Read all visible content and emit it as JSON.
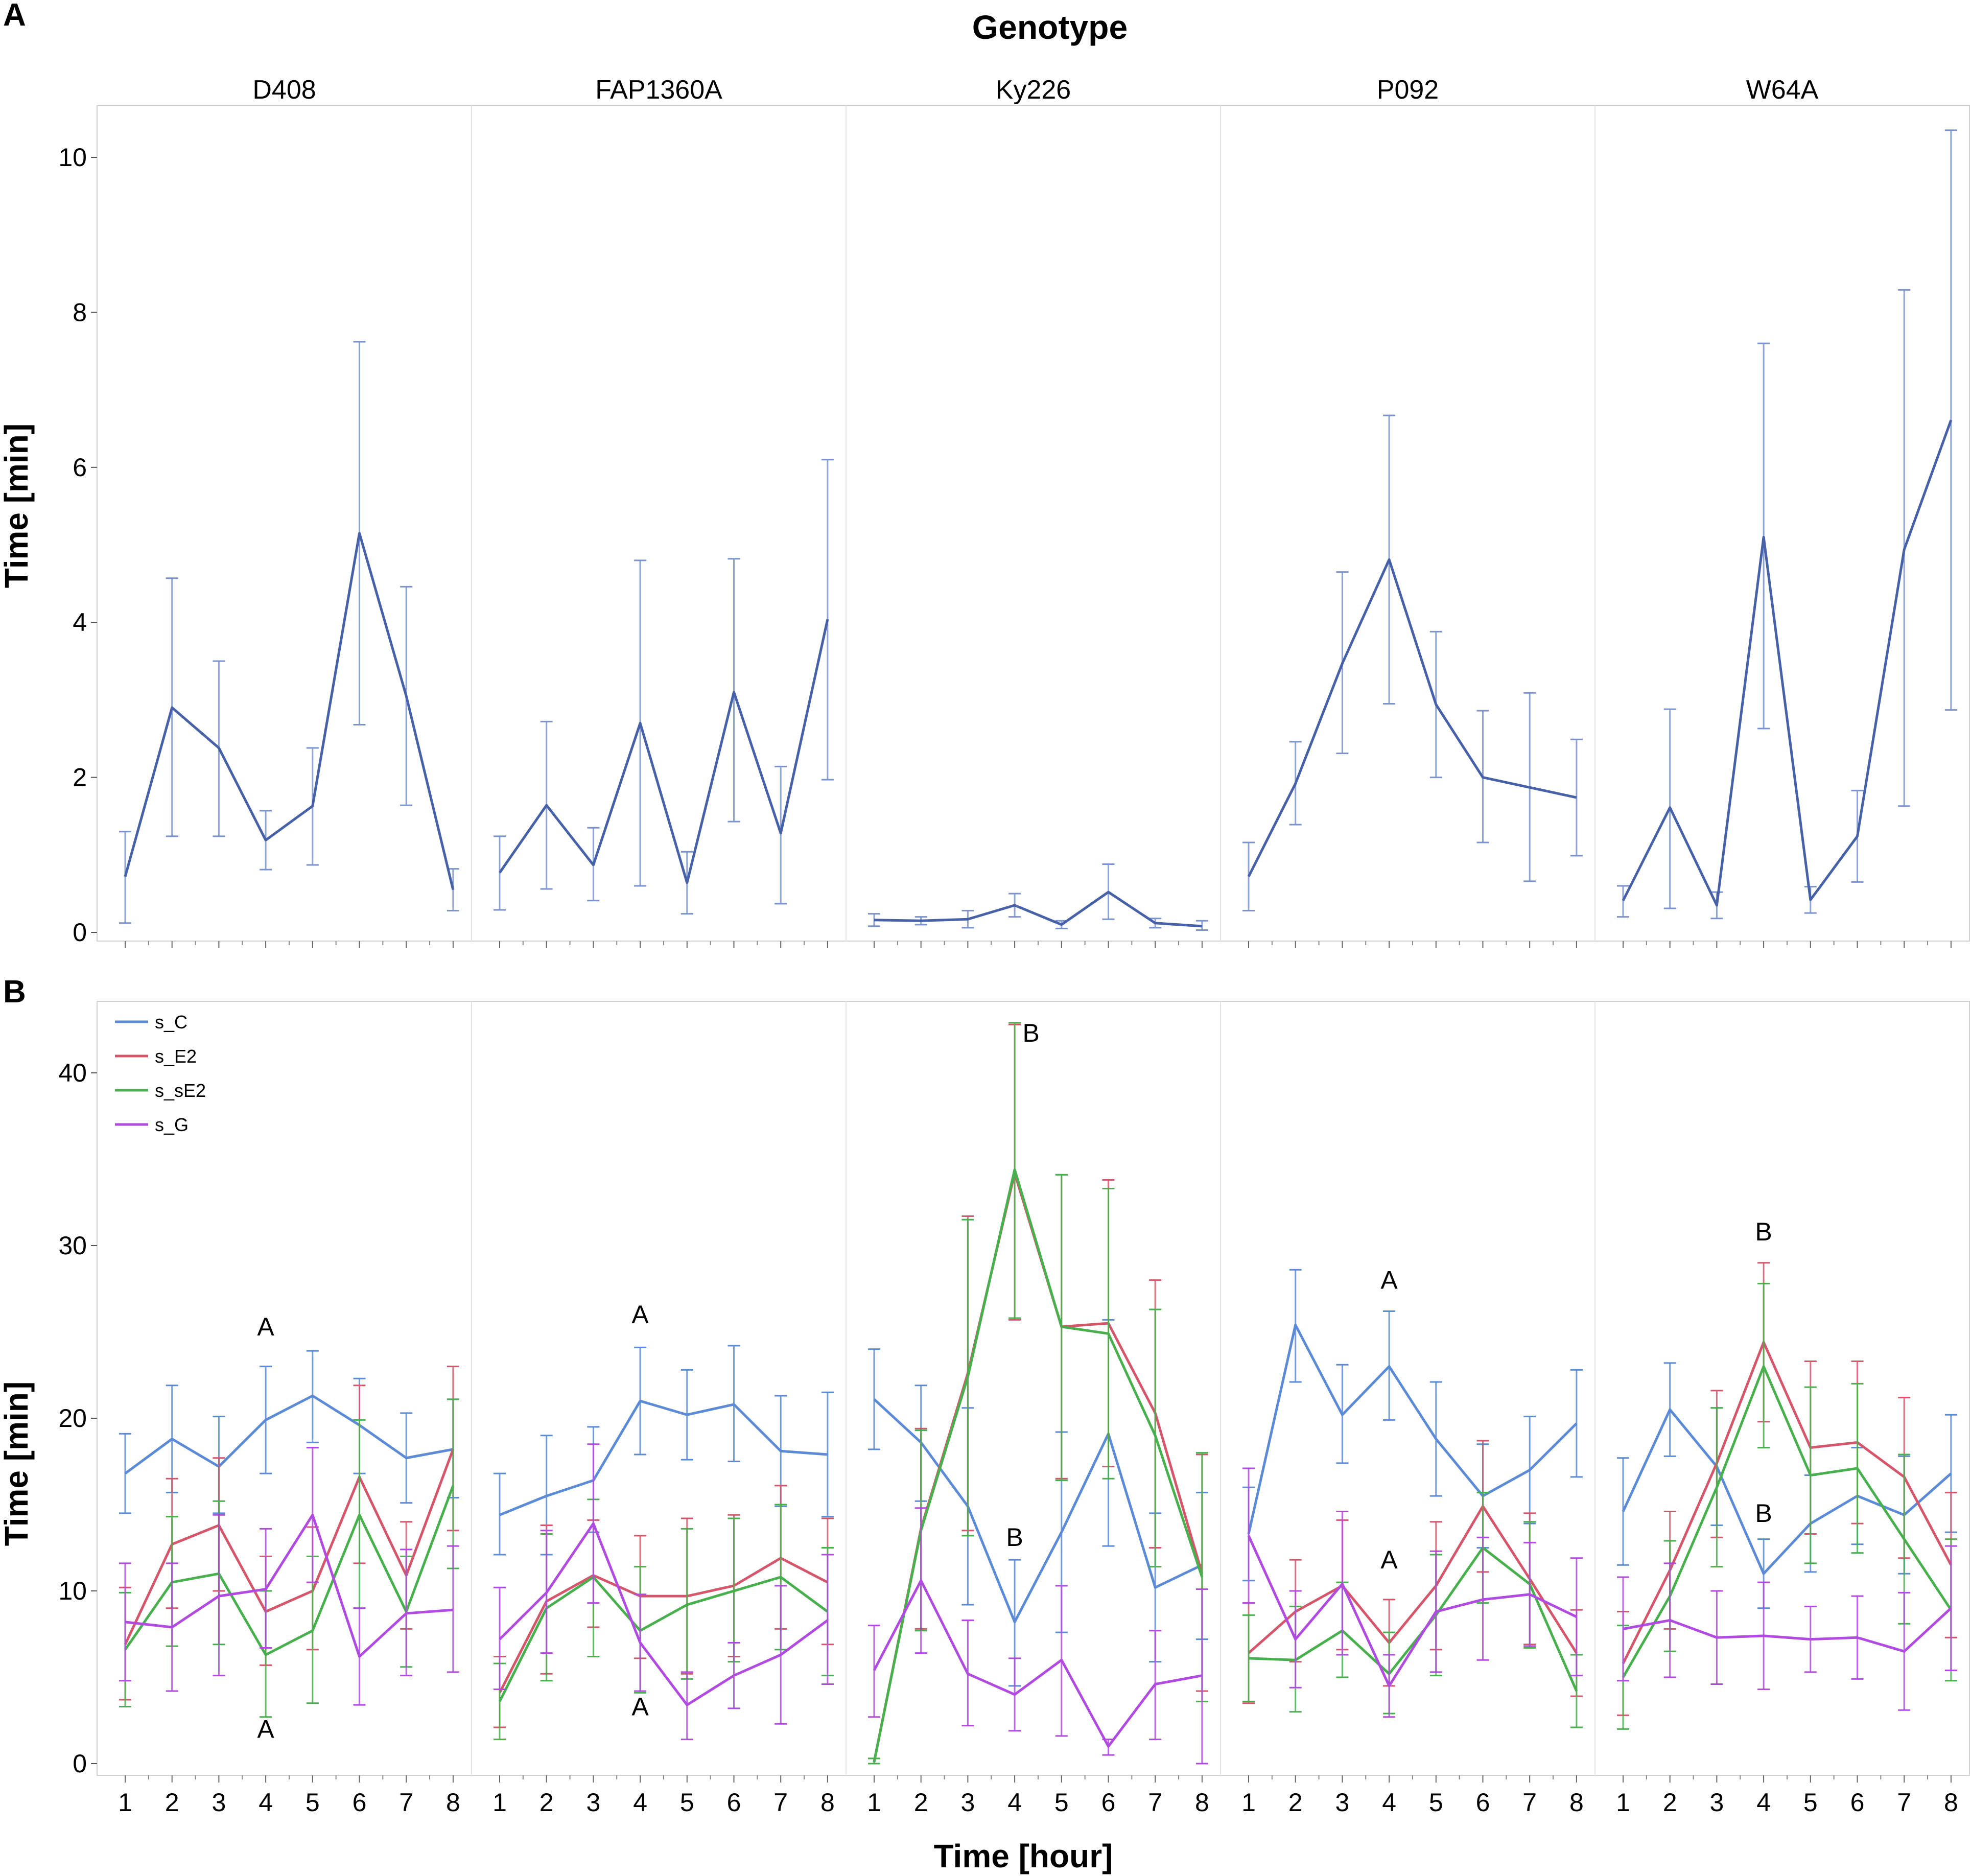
{
  "figure": {
    "panel_a_label": "A",
    "panel_b_label": "B",
    "title": "Genotype",
    "xlabel": "Time [hour]"
  },
  "colors": {
    "panel_a_line": "#4661a8",
    "panel_a_error": "#7a93cf",
    "s_C": "#5b8ad6",
    "s_E2": "#d5566a",
    "s_sE2": "#47b04d",
    "s_G": "#b04ae0",
    "frame": "#d0d0d0",
    "divider": "#e4e4e4"
  },
  "chart_data": [
    {
      "type": "line",
      "panel": "A",
      "title": "Genotype",
      "xlabel": "",
      "ylabel": "Time [min]",
      "ylim": [
        0,
        10.6
      ],
      "yticks": [
        0,
        2,
        4,
        6,
        8,
        10
      ],
      "categories": [
        "1",
        "2",
        "3",
        "4",
        "5",
        "6",
        "7",
        "8"
      ],
      "facets": [
        {
          "name": "D408",
          "values": [
            0.72,
            2.9,
            2.38,
            1.19,
            1.63,
            5.15,
            3.05,
            0.55
          ],
          "lower": [
            0.12,
            1.24,
            1.24,
            0.81,
            0.87,
            2.68,
            1.64,
            0.28
          ],
          "upper": [
            1.3,
            4.57,
            3.5,
            1.57,
            2.38,
            7.62,
            4.46,
            0.82
          ]
        },
        {
          "name": "FAP1360A",
          "values": [
            0.77,
            1.64,
            0.87,
            2.7,
            0.64,
            3.1,
            1.28,
            4.04
          ],
          "lower": [
            0.29,
            0.56,
            0.41,
            0.6,
            0.24,
            1.43,
            0.37,
            1.97
          ],
          "upper": [
            1.24,
            2.72,
            1.35,
            4.8,
            1.04,
            4.82,
            2.14,
            6.1
          ]
        },
        {
          "name": "Ky226",
          "values": [
            0.16,
            0.15,
            0.17,
            0.35,
            0.1,
            0.52,
            0.12,
            0.08
          ],
          "lower": [
            0.08,
            0.1,
            0.06,
            0.2,
            0.05,
            0.17,
            0.06,
            0.03
          ],
          "upper": [
            0.24,
            0.2,
            0.28,
            0.5,
            0.15,
            0.88,
            0.18,
            0.15
          ]
        },
        {
          "name": "P092",
          "values": [
            0.72,
            1.92,
            3.47,
            4.81,
            2.94,
            2.0,
            1.87,
            1.74
          ],
          "lower": [
            0.28,
            1.39,
            2.31,
            2.95,
            2.0,
            1.16,
            0.66,
            0.99
          ],
          "upper": [
            1.16,
            2.46,
            4.65,
            6.67,
            3.88,
            2.86,
            3.09,
            2.49
          ]
        },
        {
          "name": "W64A",
          "values": [
            0.41,
            1.61,
            0.35,
            5.1,
            0.42,
            1.24,
            4.94,
            6.61
          ],
          "lower": [
            0.2,
            0.31,
            0.18,
            2.63,
            0.25,
            0.65,
            1.63,
            2.87
          ],
          "upper": [
            0.6,
            2.88,
            0.52,
            7.6,
            0.59,
            1.83,
            8.29,
            10.35
          ]
        }
      ]
    },
    {
      "type": "line",
      "panel": "B",
      "xlabel": "Time [hour]",
      "ylabel": "Time [min]",
      "ylim": [
        0,
        43.5
      ],
      "yticks": [
        0,
        10,
        20,
        30,
        40
      ],
      "categories": [
        "1",
        "2",
        "3",
        "4",
        "5",
        "6",
        "7",
        "8"
      ],
      "legend": [
        "s_C",
        "s_E2",
        "s_sE2",
        "s_G"
      ],
      "legend_position": "top-left",
      "facets": [
        {
          "name": "D408",
          "series": [
            {
              "name": "s_C",
              "values": [
                16.8,
                18.8,
                17.2,
                19.9,
                21.3,
                19.6,
                17.7,
                18.2
              ],
              "lower": [
                14.5,
                15.7,
                14.5,
                16.8,
                18.6,
                16.8,
                15.1,
                15.4
              ],
              "upper": [
                19.1,
                21.9,
                20.1,
                23.0,
                23.9,
                22.3,
                20.3,
                21.1
              ]
            },
            {
              "name": "s_E2",
              "values": [
                6.9,
                12.7,
                13.8,
                8.8,
                10.0,
                16.6,
                10.9,
                18.2
              ],
              "lower": [
                3.7,
                9.0,
                10.0,
                5.7,
                6.6,
                11.6,
                7.8,
                13.5
              ],
              "upper": [
                10.2,
                16.5,
                17.7,
                12.0,
                13.7,
                21.9,
                14.0,
                23.0
              ]
            },
            {
              "name": "s_sE2",
              "values": [
                6.6,
                10.5,
                11.0,
                6.3,
                7.7,
                14.4,
                8.8,
                16.1
              ],
              "lower": [
                3.3,
                6.8,
                6.9,
                2.7,
                3.5,
                9.0,
                5.6,
                11.3
              ],
              "upper": [
                9.9,
                14.3,
                15.2,
                10.0,
                12.0,
                19.9,
                12.0,
                21.1
              ]
            },
            {
              "name": "s_G",
              "values": [
                8.2,
                7.9,
                9.7,
                10.1,
                14.4,
                6.2,
                8.7,
                8.9
              ],
              "lower": [
                4.8,
                4.2,
                5.1,
                6.7,
                10.5,
                3.4,
                5.1,
                5.3
              ],
              "upper": [
                11.6,
                11.6,
                14.4,
                13.6,
                18.3,
                9.0,
                12.4,
                12.6
              ]
            }
          ],
          "annotations": [
            {
              "text": "A",
              "x": 4,
              "y": 24.8
            },
            {
              "text": "A",
              "x": 4,
              "y": 1.5
            }
          ]
        },
        {
          "name": "FAP1360A",
          "series": [
            {
              "name": "s_C",
              "values": [
                14.4,
                15.5,
                16.4,
                21.0,
                20.2,
                20.8,
                18.1,
                17.9
              ],
              "lower": [
                12.1,
                12.1,
                13.4,
                17.9,
                17.6,
                17.5,
                14.9,
                14.3
              ],
              "upper": [
                16.8,
                19.0,
                19.5,
                24.1,
                22.8,
                24.2,
                21.3,
                21.5
              ]
            },
            {
              "name": "s_E2",
              "values": [
                4.1,
                9.4,
                10.9,
                9.7,
                9.7,
                10.3,
                11.9,
                10.5
              ],
              "lower": [
                2.1,
                5.2,
                7.9,
                6.1,
                5.2,
                6.2,
                7.8,
                6.9
              ],
              "upper": [
                6.2,
                13.8,
                14.1,
                13.2,
                14.2,
                14.4,
                16.1,
                14.2
              ]
            },
            {
              "name": "s_sE2",
              "values": [
                3.6,
                9.0,
                10.8,
                7.7,
                9.2,
                10.0,
                10.8,
                8.8
              ],
              "lower": [
                1.4,
                4.8,
                6.2,
                4.1,
                4.9,
                5.9,
                6.6,
                5.1
              ],
              "upper": [
                5.8,
                13.3,
                15.3,
                11.4,
                13.6,
                14.2,
                15.0,
                12.5
              ]
            },
            {
              "name": "s_G",
              "values": [
                7.2,
                9.9,
                13.9,
                7.0,
                3.4,
                5.1,
                6.3,
                8.3
              ],
              "lower": [
                4.3,
                6.4,
                9.3,
                4.2,
                1.4,
                3.2,
                2.3,
                4.6
              ],
              "upper": [
                10.2,
                13.5,
                18.5,
                9.8,
                5.3,
                7.0,
                10.3,
                12.1
              ]
            }
          ],
          "annotations": [
            {
              "text": "A",
              "x": 4,
              "y": 25.5
            },
            {
              "text": "A",
              "x": 4,
              "y": 2.8
            }
          ]
        },
        {
          "name": "Ky226",
          "series": [
            {
              "name": "s_C",
              "values": [
                21.1,
                18.6,
                14.9,
                8.2,
                13.4,
                19.1,
                10.2,
                11.5
              ],
              "lower": [
                18.2,
                15.2,
                9.2,
                4.5,
                7.6,
                12.6,
                5.9,
                7.2
              ],
              "upper": [
                24.0,
                21.9,
                20.6,
                11.8,
                19.2,
                25.7,
                14.5,
                15.7
              ]
            },
            {
              "name": "s_E2",
              "values": [
                0.1,
                13.6,
                22.6,
                34.2,
                25.3,
                25.5,
                20.3,
                11.0
              ],
              "lower": [
                0.0,
                7.8,
                13.5,
                25.7,
                16.5,
                17.2,
                12.5,
                4.2
              ],
              "upper": [
                0.3,
                19.4,
                31.7,
                42.8,
                34.1,
                33.8,
                28.0,
                17.9
              ]
            },
            {
              "name": "s_sE2",
              "values": [
                0.1,
                13.5,
                22.4,
                34.4,
                25.3,
                24.9,
                19.0,
                10.8
              ],
              "lower": [
                0.0,
                7.7,
                13.2,
                25.8,
                16.4,
                16.5,
                11.4,
                3.6
              ],
              "upper": [
                0.3,
                19.3,
                31.5,
                42.9,
                34.1,
                33.3,
                26.3,
                18.0
              ]
            },
            {
              "name": "s_G",
              "values": [
                5.4,
                10.6,
                5.2,
                4.0,
                6.0,
                1.0,
                4.6,
                5.1
              ],
              "lower": [
                2.7,
                6.4,
                2.2,
                1.9,
                1.6,
                0.5,
                1.4,
                0.0
              ],
              "upper": [
                8.0,
                14.8,
                8.3,
                6.1,
                10.3,
                1.4,
                7.7,
                10.1
              ]
            }
          ],
          "annotations": [
            {
              "text": "B",
              "x": 4.35,
              "y": 41.8
            },
            {
              "text": "B",
              "x": 4,
              "y": 12.6
            }
          ]
        },
        {
          "name": "P092",
          "series": [
            {
              "name": "s_C",
              "values": [
                13.3,
                25.4,
                20.2,
                23.0,
                18.8,
                15.5,
                17.0,
                19.7
              ],
              "lower": [
                10.6,
                22.1,
                17.4,
                19.9,
                15.5,
                12.5,
                13.9,
                16.6
              ],
              "upper": [
                16.0,
                28.6,
                23.1,
                26.2,
                22.1,
                18.5,
                20.1,
                22.8
              ]
            },
            {
              "name": "s_E2",
              "values": [
                6.4,
                8.8,
                10.3,
                7.0,
                10.3,
                14.9,
                10.7,
                6.4
              ],
              "lower": [
                3.5,
                5.9,
                6.6,
                4.5,
                6.6,
                11.1,
                6.9,
                3.9
              ],
              "upper": [
                9.3,
                11.8,
                14.1,
                9.5,
                14.0,
                18.7,
                14.5,
                8.9
              ]
            },
            {
              "name": "s_sE2",
              "values": [
                6.1,
                6.0,
                7.7,
                5.2,
                8.6,
                12.5,
                10.4,
                4.2
              ],
              "lower": [
                3.6,
                3.0,
                5.0,
                2.9,
                5.1,
                9.3,
                6.7,
                2.1
              ],
              "upper": [
                8.6,
                9.1,
                10.5,
                7.6,
                12.1,
                15.7,
                14.0,
                6.3
              ]
            },
            {
              "name": "s_G",
              "values": [
                13.2,
                7.2,
                10.4,
                4.5,
                8.8,
                9.5,
                9.8,
                8.5
              ],
              "lower": [
                9.3,
                4.4,
                6.3,
                2.7,
                5.3,
                6.0,
                6.8,
                5.1
              ],
              "upper": [
                17.1,
                10.0,
                14.6,
                6.3,
                12.3,
                13.1,
                12.8,
                11.9
              ]
            }
          ],
          "annotations": [
            {
              "text": "A",
              "x": 4,
              "y": 27.5
            },
            {
              "text": "A",
              "x": 4,
              "y": 11.3
            }
          ]
        },
        {
          "name": "W64A",
          "series": [
            {
              "name": "s_C",
              "values": [
                14.6,
                20.5,
                17.2,
                11.0,
                13.9,
                15.5,
                14.4,
                16.8
              ],
              "lower": [
                11.5,
                17.8,
                13.8,
                9.0,
                11.1,
                12.7,
                11.0,
                13.4
              ],
              "upper": [
                17.7,
                23.2,
                20.6,
                13.0,
                16.7,
                18.3,
                17.8,
                20.2
              ]
            },
            {
              "name": "s_E2",
              "values": [
                5.8,
                11.2,
                17.4,
                24.4,
                18.3,
                18.6,
                16.6,
                11.5
              ],
              "lower": [
                2.8,
                7.8,
                13.1,
                19.8,
                13.3,
                13.9,
                11.9,
                7.3
              ],
              "upper": [
                8.8,
                14.6,
                21.6,
                29.0,
                23.3,
                23.3,
                21.2,
                15.7
              ]
            },
            {
              "name": "s_sE2",
              "values": [
                5.0,
                9.7,
                16.0,
                23.0,
                16.7,
                17.1,
                13.0,
                8.9
              ],
              "lower": [
                2.0,
                6.5,
                11.4,
                18.3,
                11.6,
                12.2,
                8.1,
                4.8
              ],
              "upper": [
                8.0,
                12.9,
                20.6,
                27.8,
                21.8,
                22.0,
                17.9,
                13.0
              ]
            },
            {
              "name": "s_G",
              "values": [
                7.8,
                8.3,
                7.3,
                7.4,
                7.2,
                7.3,
                6.5,
                9.0
              ],
              "lower": [
                4.8,
                5.0,
                4.6,
                4.3,
                5.3,
                4.9,
                3.1,
                5.4
              ],
              "upper": [
                10.8,
                11.6,
                10.0,
                10.5,
                9.1,
                9.7,
                9.9,
                12.6
              ]
            }
          ],
          "annotations": [
            {
              "text": "B",
              "x": 4,
              "y": 30.3
            },
            {
              "text": "B",
              "x": 4,
              "y": 14.0
            }
          ]
        }
      ]
    }
  ]
}
